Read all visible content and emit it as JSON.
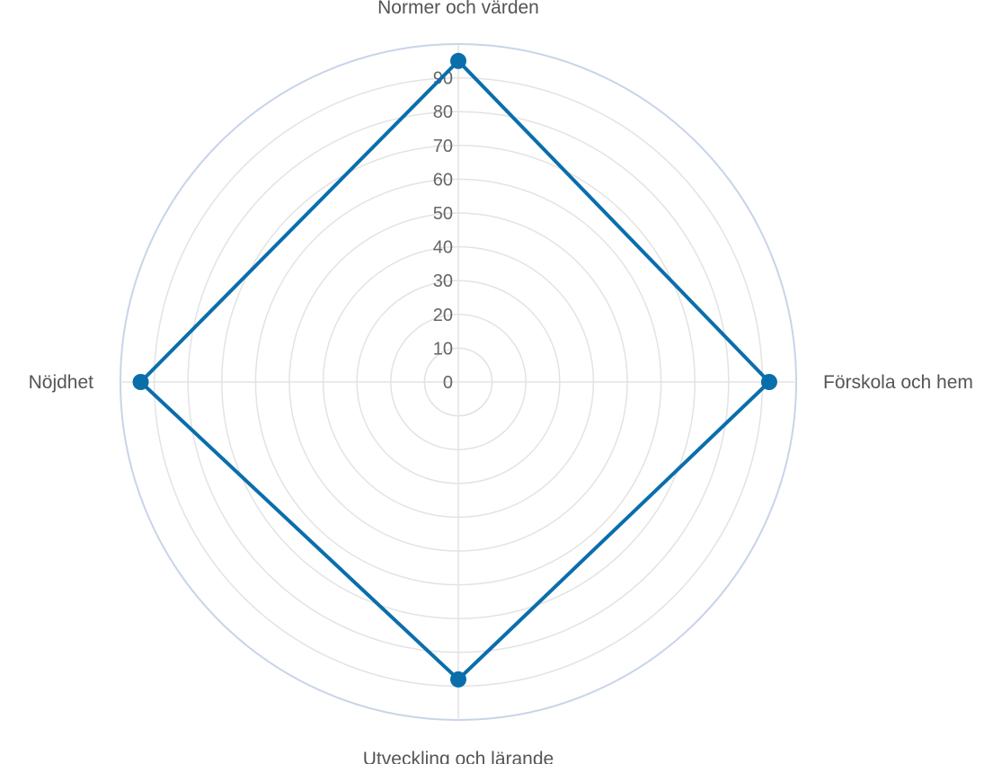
{
  "chart_data": {
    "type": "radar",
    "categories": [
      "Normer och värden",
      "Förskola och hem",
      "Utveckling och lärande",
      "Nöjdhet"
    ],
    "series": [
      {
        "values": [
          95,
          92,
          88,
          94
        ],
        "color": "#0a6eab"
      }
    ],
    "rlim": [
      0,
      100
    ],
    "ticks": [
      0,
      10,
      20,
      30,
      40,
      50,
      60,
      70,
      80,
      90
    ],
    "tick_labels": [
      "0",
      "10",
      "20",
      "30",
      "40",
      "50",
      "60",
      "70",
      "80",
      "90"
    ],
    "grid": true,
    "legend": "none"
  },
  "colors": {
    "grid": "#e3e3e3",
    "outer_ring": "#c8d4e8",
    "series": "#0a6eab",
    "text": "#666666"
  }
}
